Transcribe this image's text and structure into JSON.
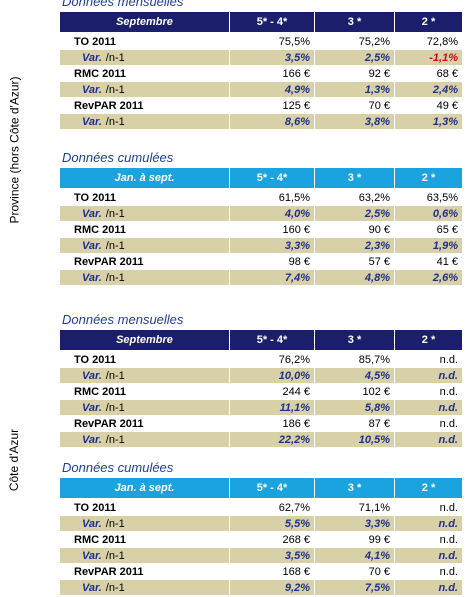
{
  "regions": [
    "Province (hors Côte d'Azur)",
    "Côte d'Azur"
  ],
  "tables": [
    {
      "title": "Données mensuelles",
      "style": "dark",
      "header": [
        "Septembre",
        "5* -  4*",
        "3 *",
        "2 *"
      ],
      "rows": [
        {
          "label": "TO 2011",
          "values": [
            "75,5%",
            "75,2%",
            "72,8%"
          ]
        },
        {
          "label": "Var.",
          "sub": "/n-1",
          "values": [
            "3,5%",
            "2,5%",
            "-1,1%"
          ]
        },
        {
          "label": "RMC 2011",
          "values": [
            "166 €",
            "92 €",
            "68 €"
          ]
        },
        {
          "label": "Var.",
          "sub": "/n-1",
          "values": [
            "4,9%",
            "1,3%",
            "2,4%"
          ]
        },
        {
          "label": "RevPAR 2011",
          "values": [
            "125 €",
            "70 €",
            "49 €"
          ]
        },
        {
          "label": "Var.",
          "sub": "/n-1",
          "values": [
            "8,6%",
            "3,8%",
            "1,3%"
          ]
        }
      ]
    },
    {
      "title": "Données cumulées",
      "style": "light",
      "header": [
        "Jan. à sept.",
        "5* -  4*",
        "3 *",
        "2 *"
      ],
      "rows": [
        {
          "label": "TO 2011",
          "values": [
            "61,5%",
            "63,2%",
            "63,5%"
          ]
        },
        {
          "label": "Var.",
          "sub": "/n-1",
          "values": [
            "4,0%",
            "2,5%",
            "0,6%"
          ]
        },
        {
          "label": "RMC 2011",
          "values": [
            "160 €",
            "90 €",
            "65 €"
          ]
        },
        {
          "label": "Var.",
          "sub": "/n-1",
          "values": [
            "3,3%",
            "2,3%",
            "1,9%"
          ]
        },
        {
          "label": "RevPAR 2011",
          "values": [
            "98 €",
            "57 €",
            "41 €"
          ]
        },
        {
          "label": "Var.",
          "sub": "/n-1",
          "values": [
            "7,4%",
            "4,8%",
            "2,6%"
          ]
        }
      ]
    },
    {
      "title": "Données mensuelles",
      "style": "dark",
      "header": [
        "Septembre",
        "5* -  4*",
        "3 *",
        "2 *"
      ],
      "rows": [
        {
          "label": "TO 2011",
          "values": [
            "76,2%",
            "85,7%",
            "n.d."
          ]
        },
        {
          "label": "Var.",
          "sub": "/n-1",
          "values": [
            "10,0%",
            "4,5%",
            "n.d."
          ]
        },
        {
          "label": "RMC 2011",
          "values": [
            "244 €",
            "102 €",
            "n.d."
          ]
        },
        {
          "label": "Var.",
          "sub": "/n-1",
          "values": [
            "11,1%",
            "5,8%",
            "n.d."
          ]
        },
        {
          "label": "RevPAR 2011",
          "values": [
            "186 €",
            "87 €",
            "n.d."
          ]
        },
        {
          "label": "Var.",
          "sub": "/n-1",
          "values": [
            "22,2%",
            "10,5%",
            "n.d."
          ]
        }
      ]
    },
    {
      "title": "Données cumulées",
      "style": "light",
      "header": [
        "Jan. à sept.",
        "5* -  4*",
        "3 *",
        "2 *"
      ],
      "rows": [
        {
          "label": "TO 2011",
          "values": [
            "62,7%",
            "71,1%",
            "n.d."
          ]
        },
        {
          "label": "Var.",
          "sub": "/n-1",
          "values": [
            "5,5%",
            "3,3%",
            "n.d."
          ]
        },
        {
          "label": "RMC 2011",
          "values": [
            "268 €",
            "99 €",
            "n.d."
          ]
        },
        {
          "label": "Var.",
          "sub": "/n-1",
          "values": [
            "3,5%",
            "4,1%",
            "n.d."
          ]
        },
        {
          "label": "RevPAR 2011",
          "values": [
            "168 €",
            "70 €",
            "n.d."
          ]
        },
        {
          "label": "Var.",
          "sub": "/n-1",
          "values": [
            "9,2%",
            "7,5%",
            "n.d."
          ]
        }
      ]
    }
  ]
}
